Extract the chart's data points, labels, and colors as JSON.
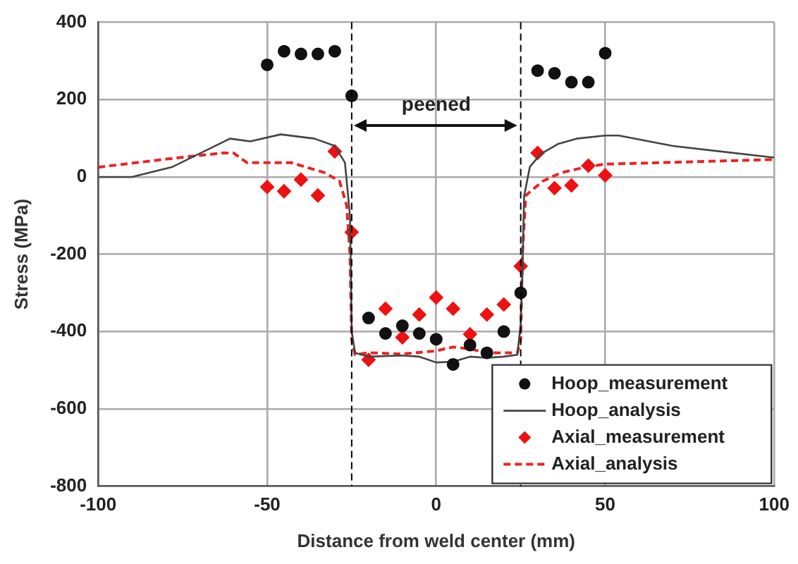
{
  "chart_data": {
    "type": "scatter",
    "xlabel": "Distance from weld center (mm)",
    "ylabel": "Stress (MPa)",
    "xlim": [
      -100,
      100
    ],
    "xticks": [
      -100,
      -50,
      0,
      50,
      100
    ],
    "ylim": [
      -800,
      400
    ],
    "yticks": [
      -800,
      -600,
      -400,
      -200,
      0,
      200,
      400
    ],
    "grid": true,
    "legend": "bottom right",
    "ref_lines": [
      {
        "axis": "x",
        "value": -25,
        "color": "#000000",
        "line_style": "dashed"
      },
      {
        "axis": "x",
        "value": 25,
        "color": "#000000",
        "line_style": "dashed"
      }
    ],
    "annotations": [
      "peened"
    ],
    "series": [
      {
        "name": "Hoop_measurement",
        "marker": "circle",
        "color": "#111111",
        "x": [
          -50,
          -45,
          -40,
          -35,
          -30,
          -25,
          -20,
          -15,
          -10,
          -5,
          0,
          5,
          10,
          15,
          20,
          25,
          30,
          35,
          40,
          45,
          50
        ],
        "values": [
          290,
          325,
          318,
          318,
          325,
          210,
          -365,
          -405,
          -385,
          -405,
          -420,
          -485,
          -435,
          -455,
          -400,
          -300,
          275,
          268,
          245,
          245,
          320
        ]
      },
      {
        "name": "Hoop_analysis",
        "type": "line",
        "marker": "none",
        "line_style": "solid",
        "color": "#444444",
        "x": [
          -100,
          -90,
          -78,
          -61,
          -55,
          -46,
          -36,
          -30,
          -27,
          -25.5,
          -25,
          -24,
          -20,
          -10,
          -5,
          0,
          5,
          10,
          15,
          20,
          24,
          25,
          25.5,
          26,
          27.7,
          31,
          36,
          41.5,
          50,
          54,
          70,
          100
        ],
        "values": [
          0,
          0,
          26,
          99,
          92,
          110,
          99,
          80,
          37,
          -100,
          -400,
          -455,
          -465,
          -462,
          -465,
          -480,
          -478,
          -465,
          -468,
          -465,
          -460,
          -380,
          -250,
          -50,
          26,
          60,
          85,
          99,
          107,
          107,
          80,
          50
        ]
      },
      {
        "name": "Axial_measurement",
        "marker": "diamond",
        "color": "#ee1111",
        "x": [
          -50,
          -45,
          -40,
          -35,
          -30,
          -25,
          -20,
          -15,
          -10,
          -5,
          0,
          5,
          10,
          15,
          20,
          25,
          30,
          35,
          40,
          45,
          50
        ],
        "values": [
          -26,
          -37,
          -7,
          -48,
          66,
          -143,
          -473,
          -341,
          -415,
          -356,
          -312,
          -341,
          -407,
          -356,
          -330,
          -231,
          62,
          -29,
          -22,
          29,
          4
        ]
      },
      {
        "name": "Axial_analysis",
        "type": "line",
        "marker": "none",
        "line_style": "dashed",
        "color": "#ee2222",
        "x": [
          -100,
          -78,
          -63,
          -60,
          -56,
          -43,
          -33,
          -28.6,
          -26.5,
          -25.5,
          -25,
          -24,
          -20,
          -10,
          0,
          5,
          10,
          15,
          20,
          24,
          25,
          25.5,
          26.5,
          31.5,
          37,
          44.5,
          50,
          100
        ],
        "values": [
          25,
          48,
          62,
          62,
          37,
          37,
          11,
          -11,
          -73,
          -200,
          -420,
          -460,
          -455,
          -458,
          -450,
          -440,
          -445,
          -455,
          -455,
          -455,
          -420,
          -200,
          -48,
          -11,
          11,
          26,
          33,
          45
        ]
      }
    ]
  }
}
